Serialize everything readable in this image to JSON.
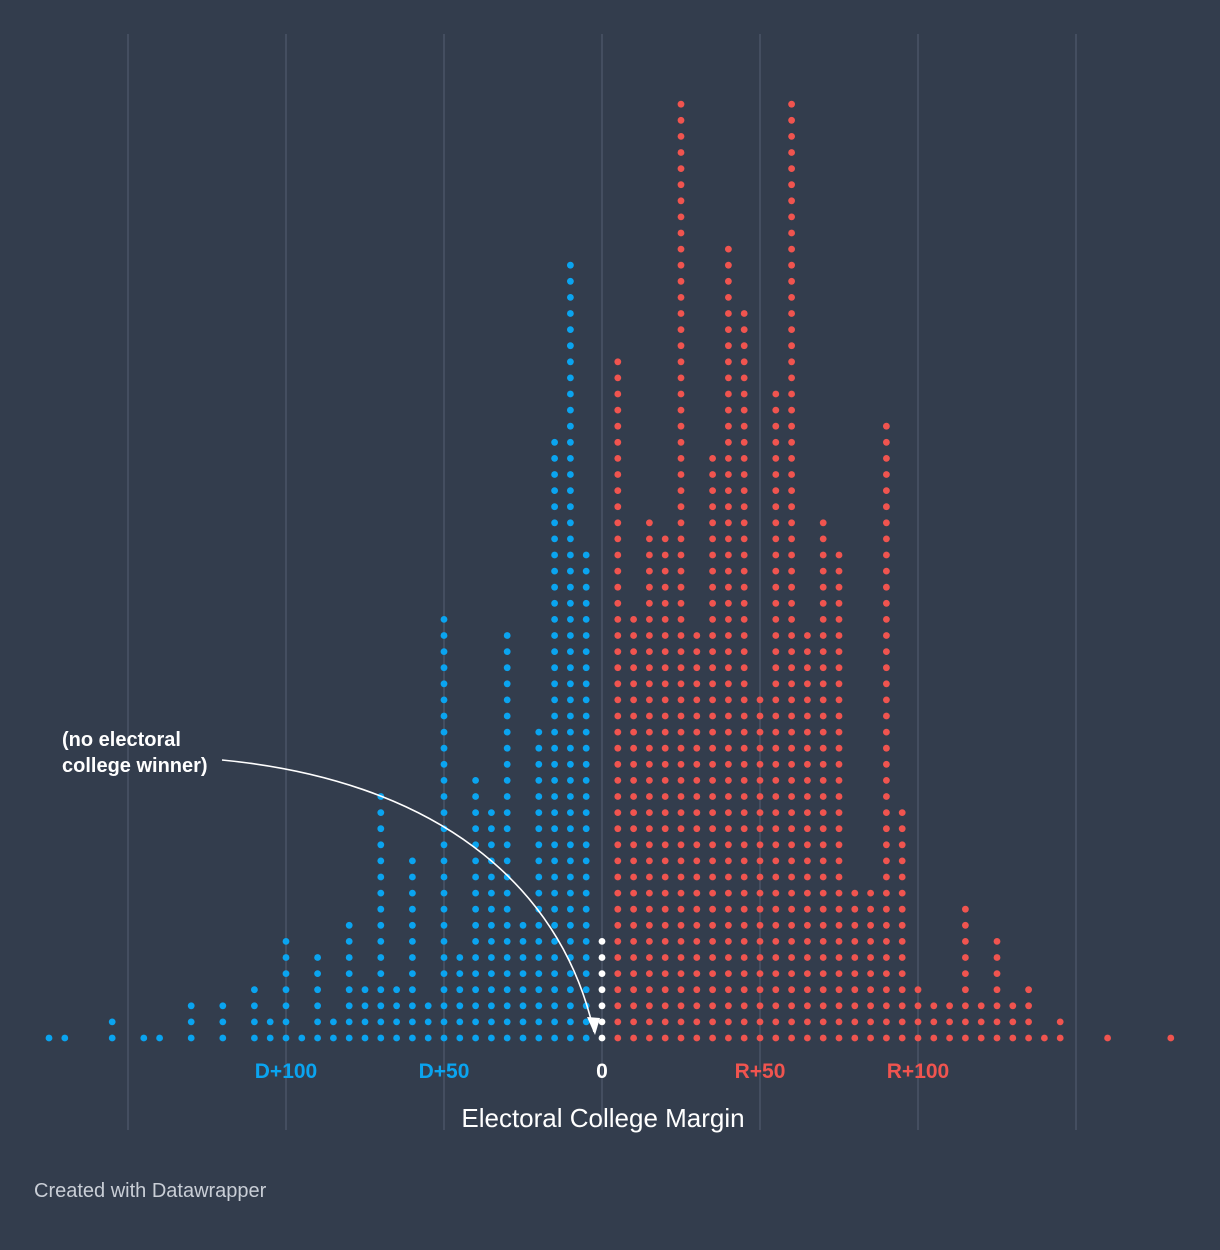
{
  "chart_data": {
    "type": "scatter",
    "subtype": "dot-histogram",
    "title": "",
    "xlabel": "Electoral College Margin",
    "ylabel": "",
    "xlim": [
      -175,
      180
    ],
    "bin_width": 5,
    "x_tick_values": [
      -100,
      -50,
      0,
      50,
      100
    ],
    "x_tick_labels": [
      "D+100",
      "D+50",
      "0",
      "R+50",
      "R+100"
    ],
    "gridline_values": [
      -150,
      -100,
      -50,
      0,
      50,
      100,
      150
    ],
    "grid": true,
    "colors": {
      "dem": "#0aa4f0",
      "rep": "#f0544f",
      "tie": "#ffffff"
    },
    "series": [
      {
        "name": "Democratic win",
        "color_key": "dem",
        "x": [
          -175,
          -170,
          -155,
          -145,
          -140,
          -130,
          -120,
          -110,
          -105,
          -100,
          -95,
          -90,
          -85,
          -80,
          -75,
          -70,
          -65,
          -60,
          -55,
          -50,
          -45,
          -40,
          -35,
          -30,
          -25,
          -20,
          -15,
          -10,
          -5
        ],
        "counts": [
          1,
          1,
          2,
          1,
          1,
          3,
          3,
          4,
          2,
          7,
          1,
          6,
          2,
          8,
          4,
          16,
          4,
          12,
          3,
          27,
          6,
          17,
          15,
          26,
          8,
          20,
          38,
          49,
          31
        ]
      },
      {
        "name": "Tie",
        "color_key": "tie",
        "x": [
          0
        ],
        "counts": [
          7
        ]
      },
      {
        "name": "Republican win",
        "color_key": "rep",
        "x": [
          5,
          10,
          15,
          20,
          25,
          30,
          35,
          40,
          45,
          50,
          55,
          60,
          65,
          70,
          75,
          80,
          85,
          90,
          95,
          100,
          105,
          110,
          115,
          120,
          125,
          130,
          135,
          140,
          145,
          160,
          180
        ],
        "counts": [
          43,
          27,
          33,
          32,
          59,
          26,
          37,
          50,
          46,
          22,
          41,
          59,
          26,
          33,
          31,
          10,
          10,
          39,
          15,
          4,
          3,
          3,
          9,
          3,
          7,
          3,
          4,
          1,
          2,
          1,
          1
        ]
      }
    ],
    "annotations": [
      {
        "text_lines": [
          "(no electoral",
          "college winner)"
        ],
        "target_x": 0
      }
    ]
  },
  "credit": "Created with Datawrapper"
}
